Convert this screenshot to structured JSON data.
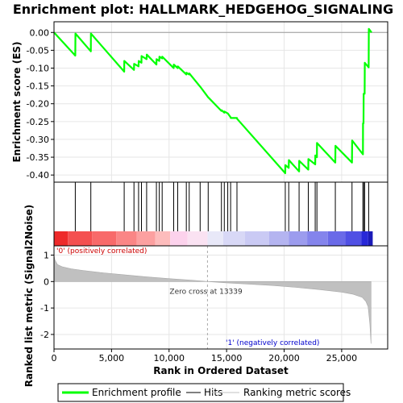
{
  "chart_data": {
    "type": "line",
    "title": "Enrichment plot: HALLMARK_HEDGEHOG_SIGNALING",
    "es_panel": {
      "ylabel": "Enrichment score (ES)",
      "ylim": [
        -0.42,
        0.03
      ],
      "yticks": [
        0.0,
        -0.05,
        -0.1,
        -0.15,
        -0.2,
        -0.25,
        -0.3,
        -0.35,
        -0.4
      ],
      "ytick_labels": [
        "0.00",
        "-0.05",
        "-0.10",
        "-0.15",
        "-0.20",
        "-0.25",
        "-0.30",
        "-0.35",
        "-0.40"
      ],
      "series": [
        {
          "name": "Enrichment profile",
          "color": "#00ff00",
          "x": [
            0,
            1850,
            1860,
            3200,
            3210,
            6100,
            6110,
            6950,
            6960,
            7350,
            7360,
            7600,
            7610,
            8050,
            8060,
            8900,
            8910,
            9150,
            9160,
            9400,
            9410,
            10400,
            10410,
            10750,
            10760,
            11500,
            11510,
            11750,
            11760,
            12700,
            12710,
            13400,
            13410,
            14550,
            14560,
            14800,
            14810,
            15100,
            15110,
            15350,
            15360,
            15900,
            15910,
            20100,
            20110,
            20400,
            20410,
            21300,
            21310,
            22100,
            22110,
            22700,
            22710,
            22850,
            22860,
            24450,
            24460,
            25900,
            25910,
            26850,
            26860,
            26900,
            26910,
            27000,
            27010,
            27350,
            27360,
            27600
          ],
          "y": [
            0.0,
            -0.065,
            -0.003,
            -0.053,
            -0.003,
            -0.11,
            -0.08,
            -0.105,
            -0.088,
            -0.095,
            -0.08,
            -0.085,
            -0.066,
            -0.075,
            -0.062,
            -0.09,
            -0.075,
            -0.08,
            -0.068,
            -0.073,
            -0.068,
            -0.1,
            -0.09,
            -0.1,
            -0.095,
            -0.118,
            -0.113,
            -0.118,
            -0.115,
            -0.152,
            -0.152,
            -0.182,
            -0.182,
            -0.22,
            -0.218,
            -0.225,
            -0.222,
            -0.227,
            -0.227,
            -0.238,
            -0.24,
            -0.24,
            -0.242,
            -0.395,
            -0.372,
            -0.38,
            -0.358,
            -0.39,
            -0.36,
            -0.385,
            -0.355,
            -0.37,
            -0.345,
            -0.35,
            -0.31,
            -0.365,
            -0.318,
            -0.365,
            -0.303,
            -0.342,
            -0.255,
            -0.255,
            -0.172,
            -0.172,
            -0.085,
            -0.098,
            0.01,
            0.0
          ]
        }
      ]
    },
    "hits_panel": {
      "hit_positions": [
        1850,
        3200,
        6100,
        6950,
        7350,
        7600,
        8050,
        8900,
        9150,
        9400,
        10400,
        10750,
        11500,
        11750,
        12700,
        13400,
        14550,
        14800,
        15100,
        15350,
        15900,
        20100,
        20400,
        21300,
        22100,
        22700,
        22850,
        24450,
        25900,
        26850,
        26900,
        27000,
        27350
      ]
    },
    "ranked_panel": {
      "ylabel": "Ranked list metric (Signal2Noise)",
      "xlabel": "Rank in Ordered Dataset",
      "ylim": [
        -2.55,
        1.35
      ],
      "yticks": [
        1,
        0,
        -1,
        -2
      ],
      "ytick_labels": [
        "1",
        "0",
        "-1",
        "-2"
      ],
      "xlim": [
        0,
        29000
      ],
      "xticks": [
        0,
        5000,
        10000,
        15000,
        20000,
        25000
      ],
      "xtick_labels": [
        "0",
        "5,000",
        "10,000",
        "15,000",
        "20,000",
        "25,000"
      ],
      "metric_x": [
        0,
        80,
        300,
        700,
        1500,
        2500,
        4000,
        6000,
        8000,
        10000,
        12000,
        13339,
        15000,
        17000,
        19000,
        21000,
        23000,
        25000,
        26000,
        26800,
        27100,
        27300,
        27450,
        27550
      ],
      "metric_y": [
        1.0,
        0.82,
        0.64,
        0.56,
        0.48,
        0.42,
        0.34,
        0.26,
        0.18,
        0.11,
        0.05,
        0.0,
        -0.05,
        -0.1,
        -0.15,
        -0.22,
        -0.3,
        -0.4,
        -0.48,
        -0.6,
        -0.75,
        -0.95,
        -1.6,
        -2.35
      ],
      "zero_cross_label": "Zero cross at 13339",
      "zero_cross": 13339,
      "positive_label": "'0' (positively correlated)",
      "negative_label": "'1' (negatively correlated)",
      "positive_color": "#cc0000",
      "negative_color": "#0000cc",
      "fill_color": "#c0c0c0"
    },
    "colorbar": {
      "segments": [
        {
          "from": 0,
          "to": 1200,
          "color": "#ee2a2a"
        },
        {
          "from": 1200,
          "to": 3300,
          "color": "#f45050"
        },
        {
          "from": 3300,
          "to": 5400,
          "color": "#f86a6a"
        },
        {
          "from": 5400,
          "to": 7200,
          "color": "#fa8686"
        },
        {
          "from": 7200,
          "to": 8800,
          "color": "#fca0a0"
        },
        {
          "from": 8800,
          "to": 10100,
          "color": "#fdbcbc"
        },
        {
          "from": 10100,
          "to": 11600,
          "color": "#fcd2ec"
        },
        {
          "from": 11600,
          "to": 13339,
          "color": "#fae2f2"
        },
        {
          "from": 13339,
          "to": 14700,
          "color": "#e8e8f8"
        },
        {
          "from": 14700,
          "to": 16600,
          "color": "#d8d8f6"
        },
        {
          "from": 16600,
          "to": 18700,
          "color": "#cacaf4"
        },
        {
          "from": 18700,
          "to": 20400,
          "color": "#b4b4f0"
        },
        {
          "from": 20400,
          "to": 22000,
          "color": "#9c9cee"
        },
        {
          "from": 22000,
          "to": 23800,
          "color": "#8484ec"
        },
        {
          "from": 23800,
          "to": 25300,
          "color": "#6a6ae8"
        },
        {
          "from": 25300,
          "to": 26700,
          "color": "#5050e4"
        },
        {
          "from": 26700,
          "to": 27300,
          "color": "#2828d8"
        },
        {
          "from": 27300,
          "to": 27700,
          "color": "#1a1ab8"
        }
      ]
    },
    "legend": [
      {
        "label": "Enrichment profile",
        "color": "#00ff00"
      },
      {
        "label": "Hits",
        "color": "#000000"
      },
      {
        "label": "Ranking metric scores",
        "color": "#c0c0c0"
      }
    ]
  }
}
